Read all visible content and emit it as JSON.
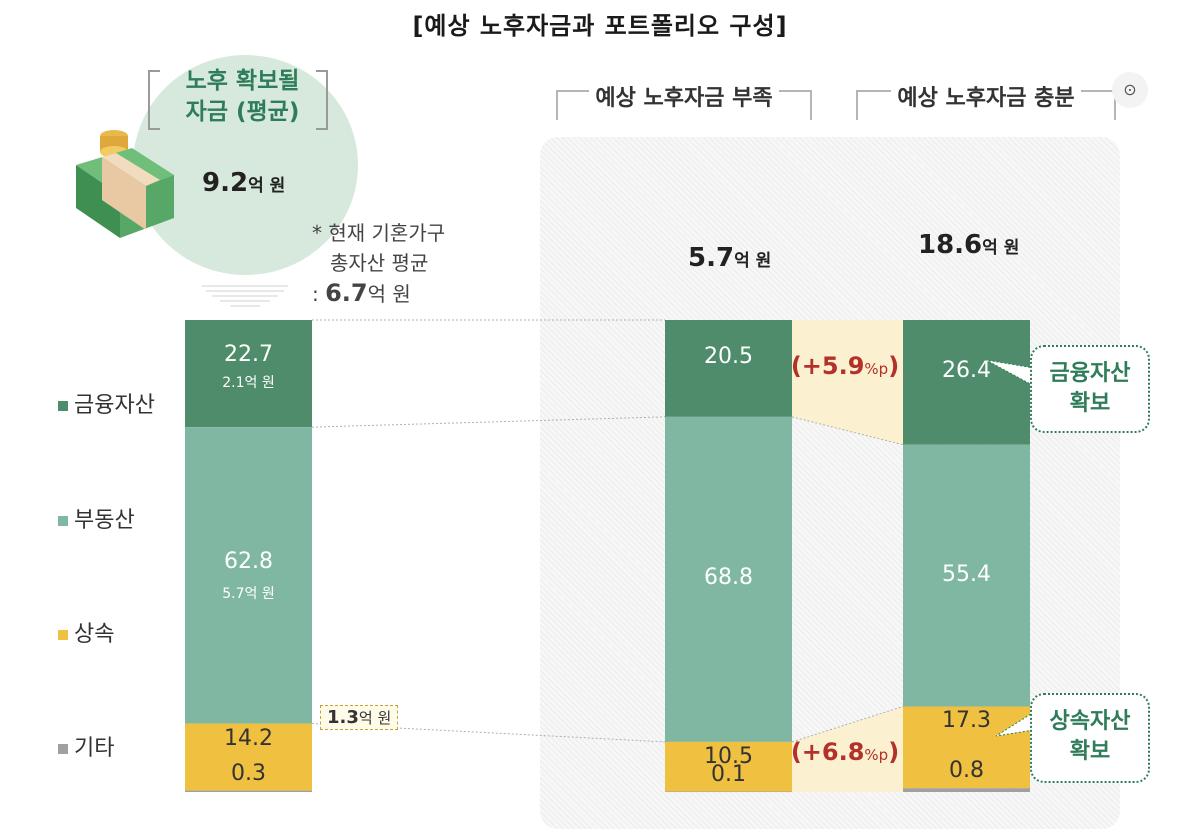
{
  "title": "[예상 노후자금과 포트폴리오 구성]",
  "colors": {
    "financial": "#4e8c6b",
    "real_estate": "#7fb7a3",
    "inheritance": "#f0c040",
    "other": "#a0a0a0",
    "accent_red": "#b3312a",
    "accent_green": "#2e7c58"
  },
  "retirement_fund": {
    "label_line1": "노후 확보될",
    "label_line2": "자금 (평균)",
    "amount": "9.2",
    "unit": "억 원"
  },
  "note": {
    "line1": "* 현재 기혼가구",
    "line2": "총자산 평균",
    "prefix": ":",
    "amount": "6.7",
    "unit": "억 원"
  },
  "scenarios": {
    "short": {
      "label": "예상 노후자금 부족",
      "amount": "5.7",
      "unit": "억 원"
    },
    "enough": {
      "label": "예상 노후자금 충분",
      "amount": "18.6",
      "unit": "억 원"
    }
  },
  "legend": [
    {
      "label": "금융자산",
      "icon": "square-icon",
      "color": "#4e8c6b"
    },
    {
      "label": "부동산",
      "icon": "square-icon",
      "color": "#7fb7a3"
    },
    {
      "label": "상속",
      "icon": "square-icon",
      "color": "#f0c040"
    },
    {
      "label": "기타",
      "icon": "square-icon",
      "color": "#a0a0a0"
    }
  ],
  "chart_data": {
    "type": "bar",
    "stacked": true,
    "unit": "%",
    "categories": [
      "노후 확보될 자금 (평균)",
      "예상 노후자금 부족",
      "예상 노후자금 충분"
    ],
    "series": [
      {
        "name": "금융자산",
        "values": [
          22.7,
          20.5,
          26.4
        ],
        "labels": [
          "22.7",
          "20.5",
          "26.4"
        ]
      },
      {
        "name": "부동산",
        "values": [
          62.8,
          68.8,
          55.4
        ],
        "labels": [
          "62.8",
          "68.8",
          "55.4"
        ]
      },
      {
        "name": "상속",
        "values": [
          14.2,
          10.5,
          17.3
        ],
        "labels": [
          "14.2",
          "10.5",
          "17.3"
        ]
      },
      {
        "name": "기타",
        "values": [
          0.3,
          0.1,
          0.8
        ],
        "labels": [
          "0.3",
          "0.1",
          "0.8"
        ]
      }
    ],
    "sub_labels": {
      "financial": "2.1억 원",
      "real_estate": "5.7억 원",
      "inheritance": "1.3억 원"
    },
    "differences": [
      {
        "sign": "(+",
        "value": "5.9",
        "unit": "%p",
        "close": ")"
      },
      {
        "sign": "(+",
        "value": "6.8",
        "unit": "%p",
        "close": ")"
      }
    ],
    "callouts": {
      "financial": [
        "금융자산",
        "확보"
      ],
      "inheritance": [
        "상속자산",
        "확보"
      ]
    }
  }
}
